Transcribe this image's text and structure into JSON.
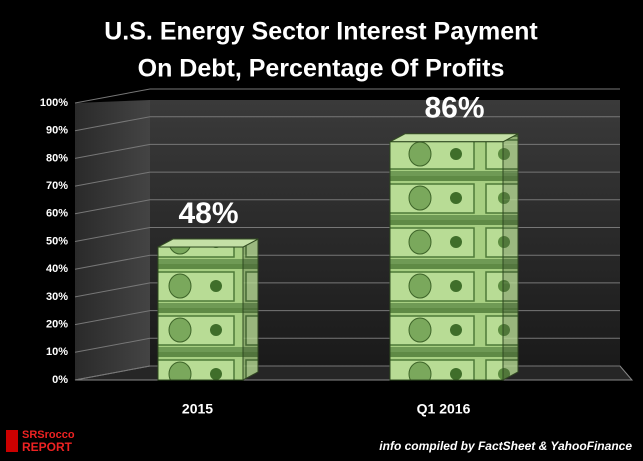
{
  "chart_data": {
    "type": "bar",
    "title": [
      "U.S. Energy Sector Interest Payment",
      "On Debt, Percentage Of Profits"
    ],
    "categories": [
      "2015",
      "Q1 2016"
    ],
    "values": [
      48,
      86
    ],
    "value_labels": [
      "48%",
      "86%"
    ],
    "color": "#8fbf6a",
    "ylim": [
      0,
      100
    ],
    "yticks": [
      {
        "value": 0,
        "label": "0%"
      },
      {
        "value": 10,
        "label": "10%"
      },
      {
        "value": 20,
        "label": "20%"
      },
      {
        "value": 30,
        "label": "30%"
      },
      {
        "value": 40,
        "label": "40%"
      },
      {
        "value": 50,
        "label": "50%"
      },
      {
        "value": 60,
        "label": "60%"
      },
      {
        "value": 70,
        "label": "70%"
      },
      {
        "value": 80,
        "label": "80%"
      },
      {
        "value": 90,
        "label": "90%"
      },
      {
        "value": 100,
        "label": "100%"
      }
    ],
    "grid": true,
    "logo": [
      "SRSrocco",
      "REPORT"
    ],
    "source": "info compiled by FactSheet & YahooFinance"
  }
}
